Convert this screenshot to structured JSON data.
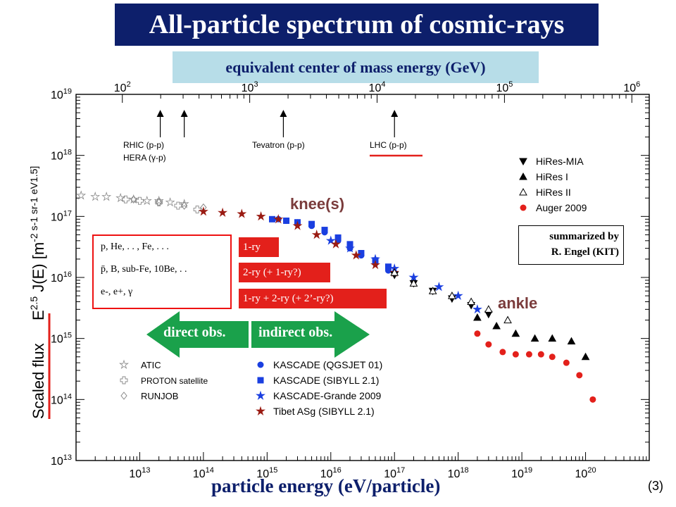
{
  "title": "All-particle spectrum of cosmic-rays",
  "top_axis_title": "equivalent center of mass energy  (GeV)",
  "xlabel": "particle energy  (eV/particle)",
  "ylabel_scaled": "Scaled flux",
  "ylabel_formula": "E",
  "ylabel_exp": "2.5",
  "ylabel_rest": " J(E)  [m",
  "ylabel_units": "-2 s-1 sr-1 eV1.5]",
  "page_number": "(3)",
  "credit": {
    "line1": "summarized by",
    "line2": "R. Engel (KIT)"
  },
  "particles": [
    "p, He, . .  , Fe, . . .",
    "p̄, B, sub-Fe, 10Be, . .",
    "e-,  e+,  γ"
  ],
  "tags": {
    "one_ry": "1-ry",
    "two_ry": "2-ry (+ 1-ry?)",
    "mix": "1-ry + 2-ry (+ 2’-ry?)"
  },
  "arrows": {
    "direct": "direct obs.",
    "indirect": "indirect obs."
  },
  "knee_label": "knee(s)",
  "ankle_label": "ankle",
  "colliders": [
    {
      "name": "RHIC (p-p)",
      "energy": 21000000000000.0
    },
    {
      "name": "HERA (γ-p)",
      "energy": 50000000000000.0
    },
    {
      "name": "Tevatron (p-p)",
      "energy": 1800000000000000.0
    },
    {
      "name": "LHC (p-p)",
      "energy": 1e+17
    }
  ],
  "legend_right": [
    "HiRes-MIA",
    "HiRes I",
    "HiRes II",
    "Auger 2009"
  ],
  "legend_left": [
    "ATIC",
    "PROTON satellite",
    "RUNJOB"
  ],
  "legend_mid": [
    "KASCADE (QGSJET 01)",
    "KASCADE (SIBYLL 2.1)",
    "KASCADE-Grande 2009",
    "Tibet ASg (SIBYLL 2.1)"
  ],
  "colors": {
    "title_bg": "#0d1f6b",
    "cm_bg": "#b7dde8",
    "accent_red": "#e3201b",
    "arrow_green": "#1aa14b",
    "kascade_blue": "#1a3fe0",
    "tibet": "#9a1b12",
    "auger": "#e3201b",
    "grey": "#888888"
  },
  "chart_data": {
    "type": "scatter",
    "x_scale": "log",
    "y_scale": "log",
    "xlim": [
      1000000000000.0,
      1e+21
    ],
    "ylim": [
      10000000000000.0,
      1e+19
    ],
    "x_ticks": [
      "10^13",
      "10^14",
      "10^15",
      "10^16",
      "10^17",
      "10^18",
      "10^19",
      "10^20"
    ],
    "y_ticks": [
      "10^13",
      "10^14",
      "10^15",
      "10^16",
      "10^17",
      "10^18",
      "10^19"
    ],
    "top_axis": {
      "label": "equivalent center of mass energy  (GeV)",
      "ticks": [
        "10^2",
        "10^3",
        "10^4",
        "10^5",
        "10^6"
      ],
      "values_GeV": [
        100,
        1000,
        10000,
        100000,
        1000000
      ]
    },
    "series": [
      {
        "name": "ATIC",
        "x": [
          1200000000000.0,
          2000000000000.0,
          3000000000000.0,
          5000000000000.0,
          8000000000000.0,
          13000000000000.0,
          20000000000000.0,
          30000000000000.0,
          50000000000000.0
        ],
        "y": [
          2.2e+17,
          2.1e+17,
          2.1e+17,
          2e+17,
          1.9e+17,
          1.8e+17,
          1.8e+17,
          1.7e+17,
          1.6e+17
        ]
      },
      {
        "name": "PROTON satellite",
        "x": [
          6000000000000.0,
          10000000000000.0,
          20000000000000.0,
          40000000000000.0,
          80000000000000.0
        ],
        "y": [
          1.9e+17,
          1.8e+17,
          1.7e+17,
          1.5e+17,
          1.3e+17
        ]
      },
      {
        "name": "RUNJOB",
        "x": [
          8000000000000.0,
          20000000000000.0,
          50000000000000.0,
          100000000000000.0
        ],
        "y": [
          1.9e+17,
          1.7e+17,
          1.5e+17,
          1.4e+17
        ]
      },
      {
        "name": "KASCADE (QGSJET 01)",
        "x": [
          1500000000000000.0,
          2000000000000000.0,
          3000000000000000.0,
          5000000000000000.0,
          8000000000000000.0,
          1.3e+16,
          2e+16,
          3e+16,
          5e+16,
          8e+16
        ],
        "y": [
          9e+16,
          8.5e+16,
          8e+16,
          7e+16,
          5.5e+16,
          4e+16,
          3e+16,
          2.3e+16,
          1.7e+16,
          1.3e+16
        ]
      },
      {
        "name": "KASCADE (SIBYLL 2.1)",
        "x": [
          1200000000000000.0,
          2000000000000000.0,
          3000000000000000.0,
          5000000000000000.0,
          8000000000000000.0,
          1.3e+16,
          2e+16,
          3e+16,
          5e+16,
          8e+16
        ],
        "y": [
          9e+16,
          8.5e+16,
          8e+16,
          7.5e+16,
          6e+16,
          4.5e+16,
          3.5e+16,
          2.5e+16,
          1.9e+16,
          1.5e+16
        ]
      },
      {
        "name": "KASCADE-Grande 2009",
        "x": [
          1e+16,
          2e+16,
          5e+16,
          1e+17,
          2e+17,
          5e+17,
          1e+18,
          2e+18
        ],
        "y": [
          4e+16,
          3e+16,
          2e+16,
          1.4e+16,
          1e+16,
          7000000000000000.0,
          5000000000000000.0,
          3000000000000000.0
        ]
      },
      {
        "name": "Tibet ASg (SIBYLL 2.1)",
        "x": [
          100000000000000.0,
          200000000000000.0,
          400000000000000.0,
          800000000000000.0,
          1500000000000000.0,
          3000000000000000.0,
          6000000000000000.0,
          1.2e+16,
          2.5e+16,
          5e+16,
          1e+17
        ],
        "y": [
          1.2e+17,
          1.15e+17,
          1.1e+17,
          1e+17,
          9e+16,
          7e+16,
          5e+16,
          3.5e+16,
          2.3e+16,
          1.6e+16,
          1.2e+16
        ]
      },
      {
        "name": "HiRes-MIA",
        "x": [
          1e+17,
          2e+17,
          4e+17,
          8e+17,
          1.6e+18,
          3e+18
        ],
        "y": [
          1.1e+16,
          8000000000000000.0,
          6000000000000000.0,
          4500000000000000.0,
          3500000000000000.0,
          2500000000000000.0
        ]
      },
      {
        "name": "HiRes I",
        "x": [
          2e+18,
          4e+18,
          8e+18,
          1.6e+19,
          3e+19,
          6e+19,
          1e+20
        ],
        "y": [
          2200000000000000.0,
          1600000000000000.0,
          1200000000000000.0,
          1000000000000000.0,
          1000000000000000.0,
          900000000000000.0,
          500000000000000.0
        ]
      },
      {
        "name": "HiRes II",
        "x": [
          1e+17,
          2e+17,
          4e+17,
          8e+17,
          1.6e+18,
          3e+18,
          6e+18
        ],
        "y": [
          1.2e+16,
          8000000000000000.0,
          6000000000000000.0,
          5000000000000000.0,
          4000000000000000.0,
          3000000000000000.0,
          2000000000000000.0
        ]
      },
      {
        "name": "Auger 2009",
        "x": [
          2e+18,
          3e+18,
          5e+18,
          8e+18,
          1.3e+19,
          2e+19,
          3e+19,
          5e+19,
          8e+19,
          1.3e+20
        ],
        "y": [
          1200000000000000.0,
          800000000000000.0,
          600000000000000.0,
          550000000000000.0,
          550000000000000.0,
          550000000000000.0,
          500000000000000.0,
          400000000000000.0,
          250000000000000.0,
          100000000000000.0
        ]
      }
    ]
  }
}
